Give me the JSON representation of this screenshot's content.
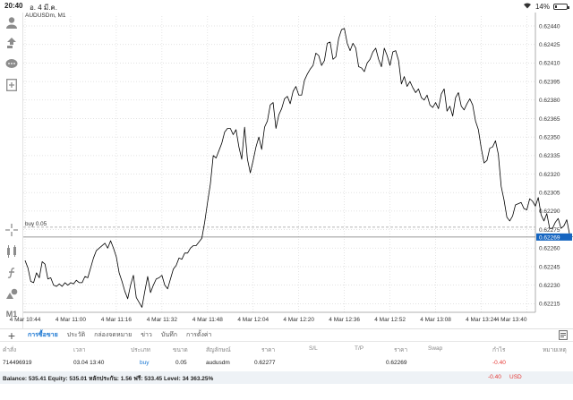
{
  "status_bar": {
    "time": "20:40",
    "date": "อ. 4 มี.ค.",
    "battery": "14%",
    "battery_level": 0.14
  },
  "toolbar": {
    "items": [
      "person-icon",
      "trade-icon",
      "chat-icon",
      "new-chart-icon",
      "crosshair-icon",
      "indicators-icon",
      "function-icon",
      "objects-icon"
    ],
    "timeframe": "M1"
  },
  "chart": {
    "symbol_label": "AUDUSDm, M1",
    "buy_line_label": "buy 0.05",
    "current_price_label": "0.62269",
    "colors": {
      "line": "#000000",
      "price_tag": "#1565c0",
      "grid": "#d9d9d9",
      "trade_line": "#9e9e9e"
    }
  },
  "chart_data": {
    "type": "line",
    "y_ticks": [
      "0.62440",
      "0.62425",
      "0.62410",
      "0.62395",
      "0.62380",
      "0.62365",
      "0.62350",
      "0.62335",
      "0.62320",
      "0.62305",
      "0.62290",
      "0.62275",
      "0.62260",
      "0.62245",
      "0.62230",
      "0.62215"
    ],
    "x_ticks": [
      "4 Mar 10:44",
      "4 Mar 11:00",
      "4 Mar 11:16",
      "4 Mar 11:32",
      "4 Mar 11:48",
      "4 Mar 12:04",
      "4 Mar 12:20",
      "4 Mar 12:36",
      "4 Mar 12:52",
      "4 Mar 13:08",
      "4 Mar 13:24",
      "4 Mar 13:40"
    ],
    "ylim": [
      0.62208,
      0.62448
    ],
    "xlim": [
      0,
      179
    ],
    "x_start_label": "4 Mar 10:44",
    "minutes_per_tick": 16,
    "buy_price": 0.62277,
    "last_price": 0.62269,
    "closes": [
      0.6225,
      0.62244,
      0.62233,
      0.62232,
      0.6224,
      0.62236,
      0.62249,
      0.62247,
      0.62235,
      0.62236,
      0.6223,
      0.62229,
      0.62231,
      0.62229,
      0.62232,
      0.6223,
      0.62232,
      0.62231,
      0.62234,
      0.62232,
      0.62232,
      0.62237,
      0.62236,
      0.62244,
      0.62252,
      0.62258,
      0.6226,
      0.62262,
      0.62264,
      0.6226,
      0.62266,
      0.6226,
      0.62253,
      0.6224,
      0.62233,
      0.62225,
      0.62219,
      0.6223,
      0.62238,
      0.6222,
      0.62216,
      0.62212,
      0.62225,
      0.62237,
      0.62224,
      0.6223,
      0.62235,
      0.62236,
      0.62238,
      0.6223,
      0.62227,
      0.62235,
      0.62243,
      0.62246,
      0.62252,
      0.62251,
      0.62256,
      0.62256,
      0.6226,
      0.62262,
      0.62262,
      0.62265,
      0.62268,
      0.62281,
      0.62297,
      0.62312,
      0.62335,
      0.62333,
      0.62339,
      0.62345,
      0.62354,
      0.62357,
      0.62357,
      0.62352,
      0.62356,
      0.62342,
      0.62332,
      0.62358,
      0.62332,
      0.62321,
      0.62331,
      0.62342,
      0.6235,
      0.6234,
      0.62358,
      0.62363,
      0.62376,
      0.62378,
      0.62357,
      0.62368,
      0.62373,
      0.62381,
      0.62383,
      0.62377,
      0.62387,
      0.62391,
      0.62384,
      0.62384,
      0.62396,
      0.62401,
      0.62405,
      0.62408,
      0.62418,
      0.62416,
      0.62408,
      0.62412,
      0.62426,
      0.62427,
      0.62413,
      0.62415,
      0.6243,
      0.62437,
      0.62438,
      0.62426,
      0.6242,
      0.62426,
      0.62422,
      0.62407,
      0.62406,
      0.62403,
      0.6241,
      0.62413,
      0.62419,
      0.62422,
      0.62413,
      0.62407,
      0.62422,
      0.62416,
      0.62408,
      0.62419,
      0.6242,
      0.62412,
      0.62393,
      0.62399,
      0.62391,
      0.62395,
      0.6239,
      0.62386,
      0.62389,
      0.62382,
      0.6238,
      0.62384,
      0.62376,
      0.62374,
      0.62378,
      0.62373,
      0.62385,
      0.62389,
      0.62371,
      0.62375,
      0.62367,
      0.62382,
      0.62386,
      0.62375,
      0.62372,
      0.62377,
      0.62381,
      0.62376,
      0.62363,
      0.62356,
      0.62341,
      0.62329,
      0.62331,
      0.62341,
      0.62342,
      0.62347,
      0.62336,
      0.6231,
      0.62299,
      0.62285,
      0.62282,
      0.62286,
      0.62295,
      0.62296,
      0.62297,
      0.62292,
      0.62291,
      0.623,
      0.62298,
      0.62294,
      0.62301,
      0.62287,
      0.62282,
      0.62288,
      0.62276,
      0.62276,
      0.62281,
      0.62284,
      0.62276,
      0.62278,
      0.62283,
      0.62271,
      0.62269
    ]
  },
  "tabs": {
    "items": [
      "การซื้อขาย",
      "ประวัติ",
      "กล่องจดหมาย",
      "ข่าว",
      "บันทึก",
      "การตั้งค่า"
    ],
    "active": 0
  },
  "positions": {
    "headers": [
      "คำสั่ง",
      "เวลา",
      "ประเภท",
      "ขนาด",
      "สัญลักษณ์",
      "ราคา",
      "S/L",
      "T/P",
      "ราคา",
      "Swap",
      "กำไร",
      "หมายเหตุ"
    ],
    "rows": [
      {
        "order": "714496919",
        "time": "03.04 13:40",
        "type": "buy",
        "size": "0.05",
        "symbol": "audusdm",
        "open_price": "0.62277",
        "sl": "",
        "tp": "",
        "price": "0.62269",
        "swap": "",
        "profit": "-0.40",
        "comment": ""
      }
    ]
  },
  "summary": {
    "text": "Balance: 535.41 Equity: 535.01 หลักประกัน: 1.56 ฟรี: 533.45 Level: 34 363.25%",
    "profit": "-0.40",
    "currency": "USD"
  }
}
